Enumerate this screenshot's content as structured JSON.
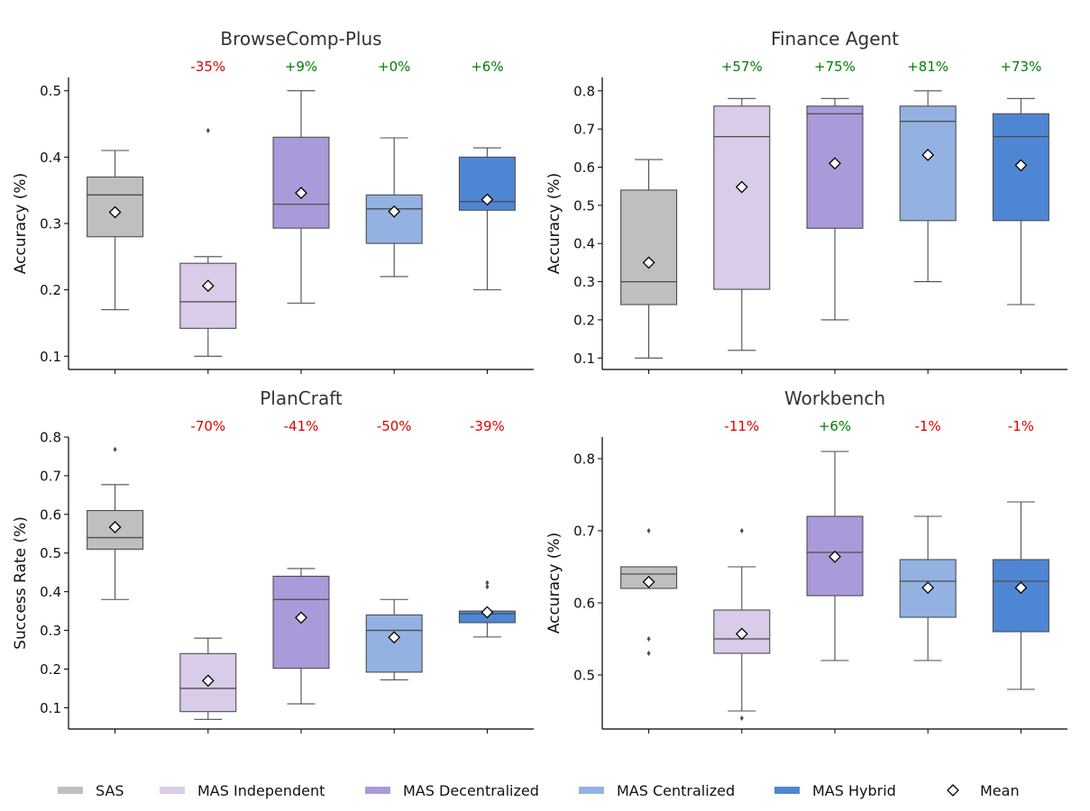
{
  "colors": {
    "SAS": "#bfbfbf",
    "MAS Independent": "#d9cce8",
    "MAS Decentralized": "#ab9ad9",
    "MAS Centralized": "#93b2e2",
    "MAS Hybrid": "#4f86d4",
    "positive": "#008000",
    "negative": "#e00000"
  },
  "legend": {
    "items": [
      {
        "label": "SAS",
        "key": "SAS"
      },
      {
        "label": "MAS Independent",
        "key": "MAS Independent"
      },
      {
        "label": "MAS Decentralized",
        "key": "MAS Decentralized"
      },
      {
        "label": "MAS Centralized",
        "key": "MAS Centralized"
      },
      {
        "label": "MAS Hybrid",
        "key": "MAS Hybrid"
      }
    ],
    "mean_label": "Mean",
    "placement": "bottom"
  },
  "chart_data": [
    {
      "type": "box",
      "title": "BrowseComp-Plus",
      "ylabel": "Accuracy (%)",
      "ylim": [
        0.08,
        0.52
      ],
      "yticks": [
        "0.1",
        "0.2",
        "0.3",
        "0.4",
        "0.5"
      ],
      "groups": [
        {
          "name": "SAS",
          "whislo": 0.17,
          "q1": 0.28,
          "med": 0.343,
          "q3": 0.37,
          "whishi": 0.41,
          "mean": 0.317,
          "fliers": [],
          "delta": ""
        },
        {
          "name": "MAS Independent",
          "whislo": 0.1,
          "q1": 0.142,
          "med": 0.182,
          "q3": 0.24,
          "whishi": 0.25,
          "mean": 0.206,
          "fliers": [
            0.44
          ],
          "delta": "-35%"
        },
        {
          "name": "MAS Decentralized",
          "whislo": 0.18,
          "q1": 0.293,
          "med": 0.329,
          "q3": 0.43,
          "whishi": 0.5,
          "mean": 0.346,
          "fliers": [],
          "delta": "+9%"
        },
        {
          "name": "MAS Centralized",
          "whislo": 0.22,
          "q1": 0.27,
          "med": 0.322,
          "q3": 0.343,
          "whishi": 0.429,
          "mean": 0.318,
          "fliers": [],
          "delta": "+0%"
        },
        {
          "name": "MAS Hybrid",
          "whislo": 0.2,
          "q1": 0.32,
          "med": 0.333,
          "q3": 0.4,
          "whishi": 0.414,
          "mean": 0.336,
          "fliers": [],
          "delta": "+6%"
        }
      ]
    },
    {
      "type": "box",
      "title": "Finance Agent",
      "ylabel": "Accuracy (%)",
      "ylim": [
        0.07,
        0.835
      ],
      "yticks": [
        "0.1",
        "0.2",
        "0.3",
        "0.4",
        "0.5",
        "0.6",
        "0.7",
        "0.8"
      ],
      "groups": [
        {
          "name": "SAS",
          "whislo": 0.1,
          "q1": 0.24,
          "med": 0.3,
          "q3": 0.54,
          "whishi": 0.62,
          "mean": 0.35,
          "fliers": [],
          "delta": ""
        },
        {
          "name": "MAS Independent",
          "whislo": 0.12,
          "q1": 0.28,
          "med": 0.68,
          "q3": 0.76,
          "whishi": 0.78,
          "mean": 0.548,
          "fliers": [],
          "delta": "+57%"
        },
        {
          "name": "MAS Decentralized",
          "whislo": 0.2,
          "q1": 0.44,
          "med": 0.74,
          "q3": 0.76,
          "whishi": 0.78,
          "mean": 0.61,
          "fliers": [],
          "delta": "+75%"
        },
        {
          "name": "MAS Centralized",
          "whislo": 0.3,
          "q1": 0.46,
          "med": 0.72,
          "q3": 0.76,
          "whishi": 0.8,
          "mean": 0.632,
          "fliers": [],
          "delta": "+81%"
        },
        {
          "name": "MAS Hybrid",
          "whislo": 0.24,
          "q1": 0.46,
          "med": 0.68,
          "q3": 0.74,
          "whishi": 0.78,
          "mean": 0.605,
          "fliers": [],
          "delta": "+73%"
        }
      ]
    },
    {
      "type": "box",
      "title": "PlanCraft",
      "ylabel": "Success Rate (%)",
      "ylim": [
        0.045,
        0.8
      ],
      "yticks": [
        "0.1",
        "0.2",
        "0.3",
        "0.4",
        "0.5",
        "0.6",
        "0.7",
        "0.8"
      ],
      "groups": [
        {
          "name": "SAS",
          "whislo": 0.38,
          "q1": 0.51,
          "med": 0.54,
          "q3": 0.61,
          "whishi": 0.677,
          "mean": 0.567,
          "fliers": [
            0.768
          ],
          "delta": ""
        },
        {
          "name": "MAS Independent",
          "whislo": 0.07,
          "q1": 0.09,
          "med": 0.15,
          "q3": 0.24,
          "whishi": 0.28,
          "mean": 0.17,
          "fliers": [],
          "delta": "-70%"
        },
        {
          "name": "MAS Decentralized",
          "whislo": 0.11,
          "q1": 0.202,
          "med": 0.38,
          "q3": 0.44,
          "whishi": 0.46,
          "mean": 0.333,
          "fliers": [],
          "delta": "-41%"
        },
        {
          "name": "MAS Centralized",
          "whislo": 0.172,
          "q1": 0.192,
          "med": 0.3,
          "q3": 0.34,
          "whishi": 0.38,
          "mean": 0.282,
          "fliers": [],
          "delta": "-50%"
        },
        {
          "name": "MAS Hybrid",
          "whislo": 0.283,
          "q1": 0.32,
          "med": 0.343,
          "q3": 0.35,
          "whishi": 0.35,
          "mean": 0.347,
          "fliers": [
            0.413,
            0.423
          ],
          "delta": "-39%"
        }
      ]
    },
    {
      "type": "box",
      "title": "Workbench",
      "ylabel": "Accuracy (%)",
      "ylim": [
        0.425,
        0.83
      ],
      "yticks": [
        "0.5",
        "0.6",
        "0.7",
        "0.8"
      ],
      "groups": [
        {
          "name": "SAS",
          "whislo": 0.62,
          "q1": 0.62,
          "med": 0.64,
          "q3": 0.65,
          "whishi": 0.65,
          "mean": 0.629,
          "fliers": [
            0.7,
            0.55,
            0.53
          ],
          "delta": ""
        },
        {
          "name": "MAS Independent",
          "whislo": 0.45,
          "q1": 0.53,
          "med": 0.55,
          "q3": 0.59,
          "whishi": 0.65,
          "mean": 0.557,
          "fliers": [
            0.7,
            0.44
          ],
          "delta": "-11%"
        },
        {
          "name": "MAS Decentralized",
          "whislo": 0.52,
          "q1": 0.61,
          "med": 0.67,
          "q3": 0.72,
          "whishi": 0.81,
          "mean": 0.664,
          "fliers": [],
          "delta": "+6%"
        },
        {
          "name": "MAS Centralized",
          "whislo": 0.52,
          "q1": 0.58,
          "med": 0.63,
          "q3": 0.66,
          "whishi": 0.72,
          "mean": 0.621,
          "fliers": [],
          "delta": "-1%"
        },
        {
          "name": "MAS Hybrid",
          "whislo": 0.48,
          "q1": 0.56,
          "med": 0.63,
          "q3": 0.66,
          "whishi": 0.74,
          "mean": 0.621,
          "fliers": [],
          "delta": "-1%"
        }
      ]
    }
  ]
}
